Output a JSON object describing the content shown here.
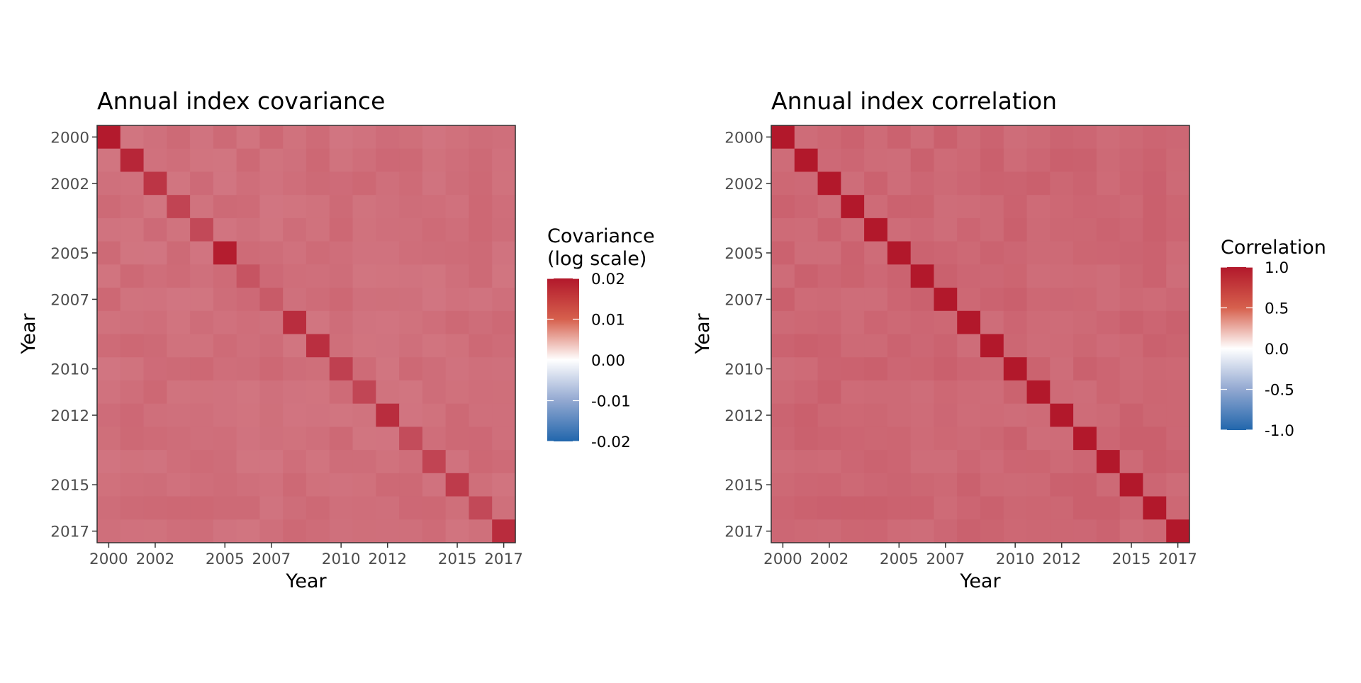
{
  "chart_data": [
    {
      "type": "heatmap",
      "title": "Annual index covariance",
      "xlabel": "Year",
      "ylabel": "Year",
      "years": [
        2000,
        2001,
        2002,
        2003,
        2004,
        2005,
        2006,
        2007,
        2008,
        2009,
        2010,
        2011,
        2012,
        2013,
        2014,
        2015,
        2016,
        2017
      ],
      "tick_years": [
        2000,
        2002,
        2005,
        2007,
        2010,
        2012,
        2015,
        2017
      ],
      "tick_labels": [
        "2000",
        "2002",
        "2005",
        "2007",
        "2010",
        "2012",
        "2015",
        "2017"
      ],
      "diagonal_values": [
        0.0198,
        0.0188,
        0.0175,
        0.0162,
        0.0158,
        0.0196,
        0.0148,
        0.0142,
        0.0182,
        0.018,
        0.0165,
        0.016,
        0.0182,
        0.0155,
        0.0162,
        0.017,
        0.0158,
        0.0183
      ],
      "offdiagonal_base": 0.0125,
      "offdiagonal_note": "off-diagonal covariances approximately 0.011-0.013",
      "legend": {
        "title_lines": [
          "Covariance",
          "(log scale)"
        ],
        "range": [
          -0.02,
          0.02
        ],
        "breaks": [
          0.02,
          0.01,
          0.0,
          -0.01,
          -0.02
        ],
        "labels": [
          "0.02",
          "0.01",
          "0.00",
          "-0.01",
          "-0.02"
        ]
      }
    },
    {
      "type": "heatmap",
      "title": "Annual index correlation",
      "xlabel": "Year",
      "ylabel": "Year",
      "years": [
        2000,
        2001,
        2002,
        2003,
        2004,
        2005,
        2006,
        2007,
        2008,
        2009,
        2010,
        2011,
        2012,
        2013,
        2014,
        2015,
        2016,
        2017
      ],
      "tick_years": [
        2000,
        2002,
        2005,
        2007,
        2010,
        2012,
        2015,
        2017
      ],
      "tick_labels": [
        "2000",
        "2002",
        "2005",
        "2007",
        "2010",
        "2012",
        "2015",
        "2017"
      ],
      "diagonal_values": [
        1,
        1,
        1,
        1,
        1,
        1,
        1,
        1,
        1,
        1,
        1,
        1,
        1,
        1,
        1,
        1,
        1,
        1
      ],
      "offdiagonal_base": 0.66,
      "offdiagonal_note": "off-diagonal correlations approximately 0.6-0.8",
      "legend": {
        "title_lines": [
          "Correlation"
        ],
        "range": [
          -1.0,
          1.0
        ],
        "breaks": [
          1.0,
          0.5,
          0.0,
          -0.5,
          -1.0
        ],
        "labels": [
          "1.0",
          "0.5",
          "0.0",
          "-0.5",
          "-1.0"
        ]
      }
    }
  ],
  "colors": {
    "low": "#2166ac",
    "mid": "#ffffff",
    "high": "#b2182b",
    "panel_border": "#333333",
    "tick_text": "#4d4d4d"
  }
}
